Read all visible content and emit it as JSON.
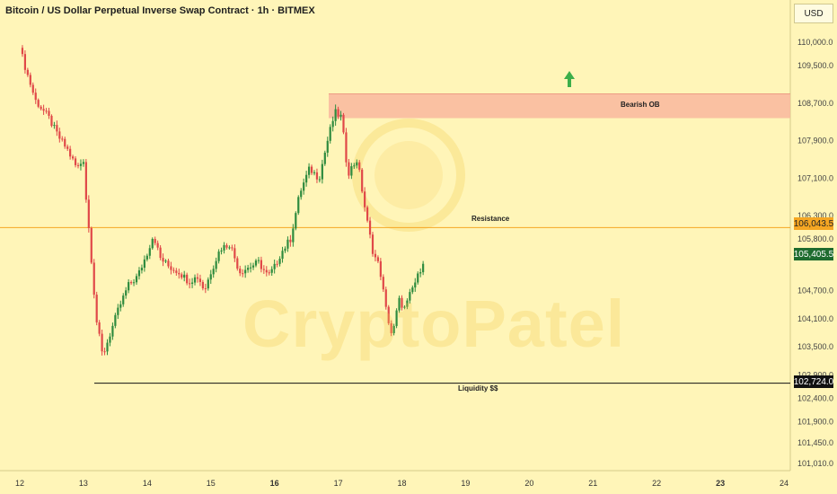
{
  "header": {
    "title": "Bitcoin / US Dollar Perpetual Inverse Swap Contract · 1h · BITMEX"
  },
  "price_scale": {
    "currency": "USD",
    "ticks": [
      "110,000.0",
      "109,500.0",
      "108,700.0",
      "107,900.0",
      "107,100.0",
      "106,300.0",
      "105,800.0",
      "104,700.0",
      "104,100.0",
      "103,500.0",
      "102,900.0",
      "102,400.0",
      "101,900.0",
      "101,450.0",
      "101,010.0"
    ],
    "resistance_label": "106,043.5",
    "current_label": "105,405.5",
    "liquidity_label": "102,724.0"
  },
  "time_scale": {
    "ticks": [
      "12",
      "13",
      "14",
      "15",
      "16",
      "17",
      "18",
      "19",
      "20",
      "21",
      "22",
      "23",
      "24"
    ]
  },
  "annotations": {
    "bearish_ob": "Bearish OB",
    "resistance": "Resistance",
    "liquidity": "Liquidity $$"
  },
  "watermark": "CryptoPatel",
  "colors": {
    "background": "#fff5b8",
    "up": "#2e8b3e",
    "down": "#e04848",
    "resistance": "#f5a623",
    "ob_zone": "#f9b79d",
    "arrow": "#3cae4a"
  },
  "chart_data": {
    "type": "candlestick",
    "timeframe": "1h",
    "resistance": 106043.5,
    "liquidity": 102724.0,
    "last_price": 105405.5,
    "bearish_ob_zone": [
      108380,
      108900
    ],
    "ylim": [
      101010,
      110000
    ],
    "close_path": [
      [
        12.0,
        109880
      ],
      [
        12.1,
        109400
      ],
      [
        12.25,
        108750
      ],
      [
        12.45,
        108400
      ],
      [
        12.6,
        108000
      ],
      [
        12.75,
        107700
      ],
      [
        12.9,
        107300
      ],
      [
        13.0,
        107500
      ],
      [
        13.05,
        106500
      ],
      [
        13.1,
        105800
      ],
      [
        13.2,
        104100
      ],
      [
        13.3,
        103300
      ],
      [
        13.4,
        103700
      ],
      [
        13.55,
        104300
      ],
      [
        13.7,
        104800
      ],
      [
        13.85,
        105000
      ],
      [
        14.0,
        105500
      ],
      [
        14.1,
        105900
      ],
      [
        14.2,
        105400
      ],
      [
        14.35,
        105200
      ],
      [
        14.5,
        105100
      ],
      [
        14.65,
        104900
      ],
      [
        14.8,
        105000
      ],
      [
        14.9,
        104700
      ],
      [
        15.0,
        105100
      ],
      [
        15.15,
        105600
      ],
      [
        15.3,
        105700
      ],
      [
        15.45,
        105100
      ],
      [
        15.6,
        105200
      ],
      [
        15.75,
        105300
      ],
      [
        15.9,
        105000
      ],
      [
        16.0,
        105200
      ],
      [
        16.1,
        105500
      ],
      [
        16.25,
        105800
      ],
      [
        16.4,
        106800
      ],
      [
        16.55,
        107300
      ],
      [
        16.7,
        107100
      ],
      [
        16.85,
        108000
      ],
      [
        16.95,
        108500
      ],
      [
        17.05,
        108400
      ],
      [
        17.15,
        107200
      ],
      [
        17.3,
        107500
      ],
      [
        17.45,
        106200
      ],
      [
        17.55,
        105500
      ],
      [
        17.65,
        105200
      ],
      [
        17.75,
        104300
      ],
      [
        17.85,
        103700
      ],
      [
        17.95,
        104500
      ],
      [
        18.05,
        104300
      ],
      [
        18.15,
        104700
      ],
      [
        18.25,
        105000
      ],
      [
        18.35,
        105405
      ]
    ]
  }
}
